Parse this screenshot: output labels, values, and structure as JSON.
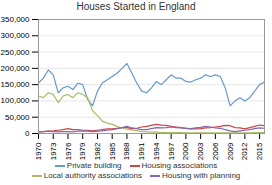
{
  "chart_data": {
    "type": "line",
    "title": "Houses Started in England",
    "x": [
      1970,
      1971,
      1972,
      1973,
      1974,
      1975,
      1976,
      1977,
      1978,
      1979,
      1980,
      1981,
      1982,
      1983,
      1984,
      1985,
      1986,
      1987,
      1988,
      1989,
      1990,
      1991,
      1992,
      1993,
      1994,
      1995,
      1996,
      1997,
      1998,
      1999,
      2000,
      2001,
      2002,
      2003,
      2004,
      2005,
      2006,
      2007,
      2008,
      2009,
      2010,
      2011,
      2012,
      2013,
      2014,
      2015,
      2016
    ],
    "series": [
      {
        "name": "Private building",
        "color": "#6699CC",
        "values": [
          155000,
          170000,
          195000,
          180000,
          125000,
          140000,
          145000,
          135000,
          155000,
          150000,
          105000,
          85000,
          130000,
          155000,
          165000,
          175000,
          185000,
          200000,
          215000,
          185000,
          155000,
          130000,
          125000,
          140000,
          160000,
          150000,
          165000,
          180000,
          170000,
          170000,
          160000,
          158000,
          165000,
          170000,
          180000,
          175000,
          180000,
          175000,
          140000,
          85000,
          100000,
          110000,
          100000,
          110000,
          130000,
          150000,
          158000
        ]
      },
      {
        "name": "Housing associations",
        "color": "#CC4444",
        "values": [
          5000,
          6000,
          7000,
          8000,
          10000,
          12000,
          15000,
          12000,
          12000,
          10000,
          10000,
          8000,
          10000,
          12000,
          14000,
          14000,
          16000,
          18000,
          18000,
          15000,
          16000,
          20000,
          22000,
          25000,
          28000,
          26000,
          25000,
          22000,
          20000,
          18000,
          16000,
          14000,
          14000,
          15000,
          17000,
          18000,
          20000,
          22000,
          25000,
          24000,
          18000,
          17000,
          14000,
          18000,
          22000,
          26000,
          24000
        ]
      },
      {
        "name": "Local authority associations",
        "color": "#AABB66",
        "values": [
          115000,
          110000,
          125000,
          120000,
          95000,
          115000,
          120000,
          110000,
          125000,
          120000,
          110000,
          70000,
          55000,
          38000,
          32000,
          28000,
          22000,
          17000,
          13000,
          11000,
          9000,
          6000,
          5000,
          4000,
          4000,
          3000,
          3000,
          3000,
          3000,
          3000,
          2000,
          2000,
          2000,
          2000,
          2000,
          2000,
          2000,
          2000,
          2000,
          2000,
          2000,
          2000,
          2000,
          2000,
          3000,
          3000,
          3000
        ]
      },
      {
        "name": "Housing with planning",
        "color": "#8866AA",
        "values": [
          5000,
          6000,
          7000,
          6000,
          5000,
          6000,
          6000,
          5000,
          7000,
          8000,
          7000,
          6000,
          7000,
          8000,
          10000,
          12000,
          15000,
          18000,
          22000,
          17000,
          15000,
          12000,
          12000,
          15000,
          18000,
          17000,
          18000,
          20000,
          18000,
          17000,
          16000,
          15000,
          17000,
          19000,
          22000,
          20000,
          17000,
          16000,
          12000,
          8000,
          6000,
          8000,
          10000,
          12000,
          15000,
          17000,
          16000
        ]
      }
    ],
    "xlim": [
      1970,
      2016
    ],
    "xticks": [
      1970,
      1973,
      1976,
      1979,
      1982,
      1985,
      1988,
      1991,
      1994,
      1997,
      2000,
      2003,
      2006,
      2009,
      2012,
      2015
    ],
    "ylim": [
      0,
      350000
    ],
    "yticks": [
      0,
      {
        "value": 50000,
        "label": "50,000"
      },
      {
        "value": 100000,
        "label": "100,000"
      },
      {
        "value": 150000,
        "label": "150,000"
      },
      {
        "value": 200000,
        "label": "200,000"
      },
      {
        "value": 250000,
        "label": "250,000"
      },
      {
        "value": 300000,
        "label": "300,000"
      },
      {
        "value": 350000,
        "label": "350,000"
      }
    ],
    "grid": "y",
    "legend": "bottom"
  }
}
